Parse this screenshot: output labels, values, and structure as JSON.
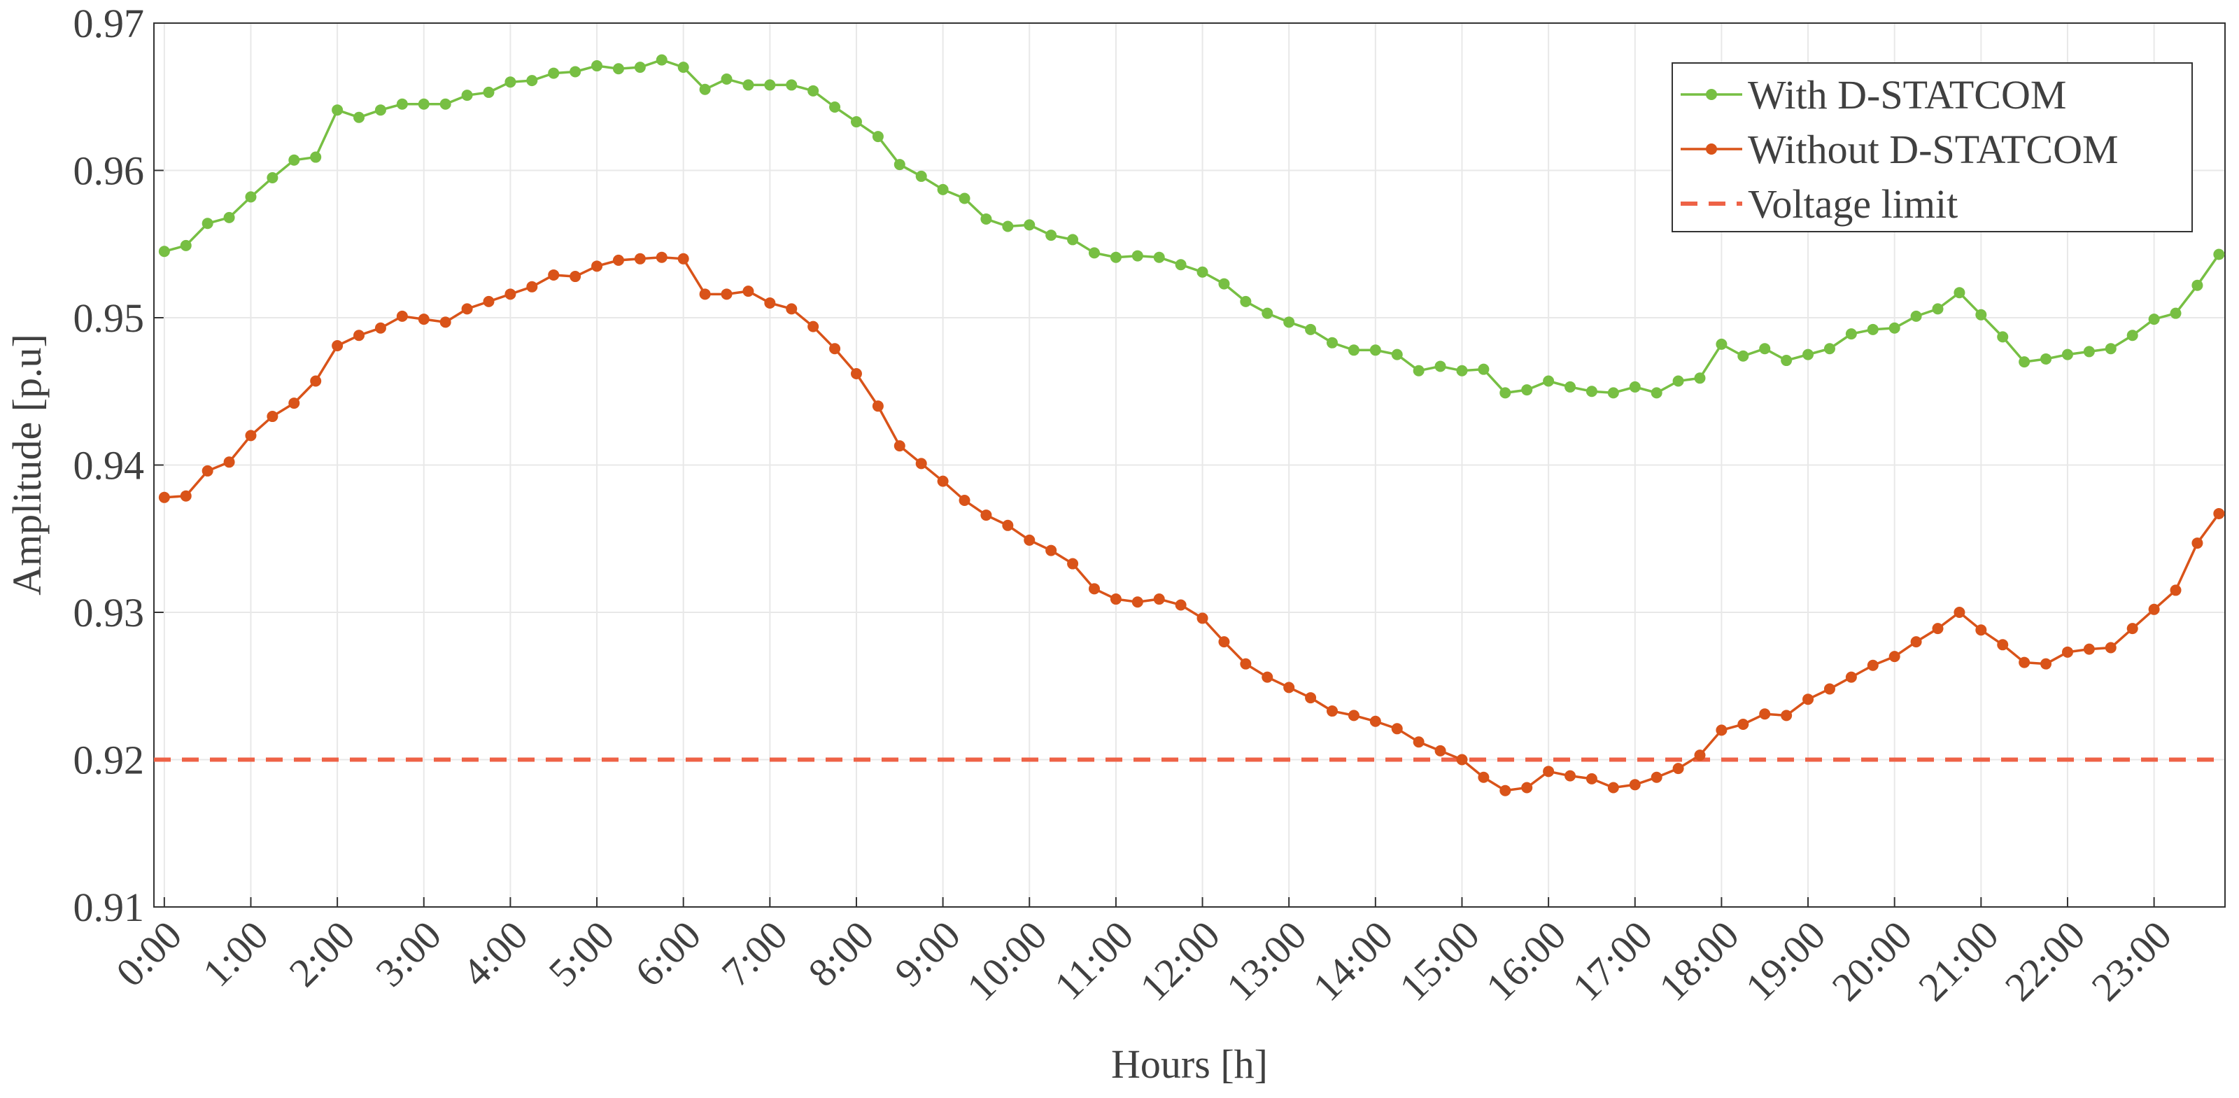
{
  "chart_data": {
    "type": "line",
    "xlabel": "Hours [h]",
    "ylabel": "Amplitude [p.u]",
    "x": [
      0,
      0.25,
      0.5,
      0.75,
      1,
      1.25,
      1.5,
      1.75,
      2,
      2.25,
      2.5,
      2.75,
      3,
      3.25,
      3.5,
      3.75,
      4,
      4.25,
      4.5,
      4.75,
      5,
      5.25,
      5.5,
      5.75,
      6,
      6.25,
      6.5,
      6.75,
      7,
      7.25,
      7.5,
      7.75,
      8,
      8.25,
      8.5,
      8.75,
      9,
      9.25,
      9.5,
      9.75,
      10,
      10.25,
      10.5,
      10.75,
      11,
      11.25,
      11.5,
      11.75,
      12,
      12.25,
      12.5,
      12.75,
      13,
      13.25,
      13.5,
      13.75,
      14,
      14.25,
      14.5,
      14.75,
      15,
      15.25,
      15.5,
      15.75,
      16,
      16.25,
      16.5,
      16.75,
      17,
      17.25,
      17.5,
      17.75,
      18,
      18.25,
      18.5,
      18.75,
      19,
      19.25,
      19.5,
      19.75,
      20,
      20.25,
      20.5,
      20.75,
      21,
      21.25,
      21.5,
      21.75,
      22,
      22.25,
      22.5,
      22.75,
      23,
      23.25,
      23.5,
      23.75
    ],
    "series": [
      {
        "name": "With D-STATCOM",
        "color": "#77bf43",
        "values": [
          0.9545,
          0.9549,
          0.9564,
          0.9568,
          0.9582,
          0.9595,
          0.9607,
          0.9609,
          0.9641,
          0.9636,
          0.9641,
          0.9645,
          0.9645,
          0.9645,
          0.9651,
          0.9653,
          0.966,
          0.9661,
          0.9666,
          0.9667,
          0.9671,
          0.9669,
          0.967,
          0.9675,
          0.967,
          0.9655,
          0.9662,
          0.9658,
          0.9658,
          0.9658,
          0.9654,
          0.9643,
          0.9633,
          0.9623,
          0.9604,
          0.9596,
          0.9587,
          0.9581,
          0.9567,
          0.9562,
          0.9563,
          0.9556,
          0.9553,
          0.9544,
          0.9541,
          0.9542,
          0.9541,
          0.9536,
          0.9531,
          0.9523,
          0.9511,
          0.9503,
          0.9497,
          0.9492,
          0.9483,
          0.9478,
          0.9478,
          0.9475,
          0.9464,
          0.9467,
          0.9464,
          0.9465,
          0.9449,
          0.9451,
          0.9457,
          0.9453,
          0.945,
          0.9449,
          0.9453,
          0.9449,
          0.9457,
          0.9459,
          0.9482,
          0.9474,
          0.9479,
          0.9471,
          0.9475,
          0.9479,
          0.9489,
          0.9492,
          0.9493,
          0.9501,
          0.9506,
          0.9517,
          0.9502,
          0.9487,
          0.947,
          0.9472,
          0.9475,
          0.9477,
          0.9479,
          0.9488,
          0.9499,
          0.9503,
          0.9522,
          0.9543
        ]
      },
      {
        "name": "Without D-STATCOM",
        "color": "#d95319",
        "values": [
          0.9378,
          0.9379,
          0.9396,
          0.9402,
          0.942,
          0.9433,
          0.9442,
          0.9457,
          0.9481,
          0.9488,
          0.9493,
          0.9501,
          0.9499,
          0.9497,
          0.9506,
          0.9511,
          0.9516,
          0.9521,
          0.9529,
          0.9528,
          0.9535,
          0.9539,
          0.954,
          0.9541,
          0.954,
          0.9516,
          0.9516,
          0.9518,
          0.951,
          0.9506,
          0.9494,
          0.9479,
          0.9462,
          0.944,
          0.9413,
          0.9401,
          0.9389,
          0.9376,
          0.9366,
          0.9359,
          0.9349,
          0.9342,
          0.9333,
          0.9316,
          0.9309,
          0.9307,
          0.9309,
          0.9305,
          0.9296,
          0.928,
          0.9265,
          0.9256,
          0.9249,
          0.9242,
          0.9233,
          0.923,
          0.9226,
          0.9221,
          0.9212,
          0.9206,
          0.92,
          0.9188,
          0.9179,
          0.9181,
          0.9192,
          0.9189,
          0.9187,
          0.9181,
          0.9183,
          0.9188,
          0.9194,
          0.9203,
          0.922,
          0.9224,
          0.9231,
          0.923,
          0.9241,
          0.9248,
          0.9256,
          0.9264,
          0.927,
          0.928,
          0.9289,
          0.93,
          0.9288,
          0.9278,
          0.9266,
          0.9265,
          0.9273,
          0.9275,
          0.9276,
          0.9289,
          0.9302,
          0.9315,
          0.9347,
          0.9367
        ]
      }
    ],
    "limit": {
      "name": "Voltage limit",
      "value": 0.92,
      "color": "#ee6246"
    },
    "xlim": [
      -0.12,
      23.82
    ],
    "ylim": [
      0.91,
      0.97
    ],
    "yticks": [
      0.91,
      0.92,
      0.93,
      0.94,
      0.95,
      0.96,
      0.97
    ],
    "xticks": [
      {
        "value": 0,
        "label": "0:00"
      },
      {
        "value": 1,
        "label": "1:00"
      },
      {
        "value": 2,
        "label": "2:00"
      },
      {
        "value": 3,
        "label": "3:00"
      },
      {
        "value": 4,
        "label": "4:00"
      },
      {
        "value": 5,
        "label": "5:00"
      },
      {
        "value": 6,
        "label": "6:00"
      },
      {
        "value": 7,
        "label": "7:00"
      },
      {
        "value": 8,
        "label": "8:00"
      },
      {
        "value": 9,
        "label": "9:00"
      },
      {
        "value": 10,
        "label": "10:00"
      },
      {
        "value": 11,
        "label": "11:00"
      },
      {
        "value": 12,
        "label": "12:00"
      },
      {
        "value": 13,
        "label": "13:00"
      },
      {
        "value": 14,
        "label": "14:00"
      },
      {
        "value": 15,
        "label": "15:00"
      },
      {
        "value": 16,
        "label": "16:00"
      },
      {
        "value": 17,
        "label": "17:00"
      },
      {
        "value": 18,
        "label": "18:00"
      },
      {
        "value": 19,
        "label": "19:00"
      },
      {
        "value": 20,
        "label": "20:00"
      },
      {
        "value": 21,
        "label": "21:00"
      },
      {
        "value": 22,
        "label": "22:00"
      },
      {
        "value": 23,
        "label": "23:00"
      }
    ],
    "grid": true,
    "legend": "top-right"
  }
}
